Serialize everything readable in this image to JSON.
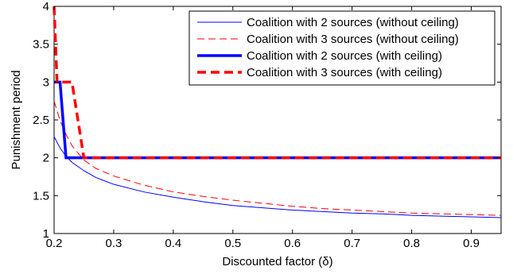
{
  "chart_data": {
    "type": "line",
    "xlabel": "Discounted factor (δ)",
    "ylabel": "Punishment period",
    "xlim": [
      0.2,
      0.95
    ],
    "ylim": [
      1,
      4
    ],
    "xticks": [
      0.2,
      0.3,
      0.4,
      0.5,
      0.6,
      0.7,
      0.8,
      0.9
    ],
    "yticks": [
      1,
      1.5,
      2,
      2.5,
      3,
      3.5,
      4
    ],
    "xtick_labels": [
      "0.2",
      "0.3",
      "0.4",
      "0.5",
      "0.6",
      "0.7",
      "0.8",
      "0.9"
    ],
    "ytick_labels": [
      "1",
      "1.5",
      "2",
      "2.5",
      "3",
      "3.5",
      "4"
    ],
    "grid": false,
    "legend_position": "top-right",
    "series": [
      {
        "name": "Coalition with 2 sources (without ceiling)",
        "color": "#0000ff",
        "line_style": "solid",
        "line_weight": "thin",
        "x": [
          0.2,
          0.21,
          0.22,
          0.23,
          0.25,
          0.27,
          0.3,
          0.35,
          0.4,
          0.45,
          0.5,
          0.55,
          0.6,
          0.65,
          0.7,
          0.75,
          0.8,
          0.85,
          0.9,
          0.95
        ],
        "y": [
          2.28,
          2.13,
          2.02,
          1.94,
          1.83,
          1.74,
          1.65,
          1.55,
          1.48,
          1.42,
          1.37,
          1.34,
          1.31,
          1.29,
          1.27,
          1.26,
          1.24,
          1.23,
          1.22,
          1.21
        ]
      },
      {
        "name": "Coalition with 3 sources (without ceiling)",
        "color": "#ff0000",
        "line_style": "dashed",
        "line_weight": "thin",
        "x": [
          0.2,
          0.21,
          0.22,
          0.23,
          0.25,
          0.27,
          0.3,
          0.35,
          0.4,
          0.45,
          0.5,
          0.55,
          0.6,
          0.65,
          0.7,
          0.75,
          0.8,
          0.85,
          0.9,
          0.95
        ],
        "y": [
          2.75,
          2.49,
          2.31,
          2.16,
          1.97,
          1.86,
          1.76,
          1.64,
          1.55,
          1.49,
          1.44,
          1.4,
          1.36,
          1.33,
          1.31,
          1.29,
          1.27,
          1.26,
          1.25,
          1.24
        ]
      },
      {
        "name": "Coalition with 2 sources (with ceiling)",
        "color": "#0000ff",
        "line_style": "solid",
        "line_weight": "thick",
        "x": [
          0.2,
          0.21,
          0.22,
          0.95
        ],
        "y": [
          3,
          3,
          2,
          2
        ]
      },
      {
        "name": "Coalition with 3 sources (with ceiling)",
        "color": "#ff0000",
        "line_style": "dashed",
        "line_weight": "thick",
        "x": [
          0.2,
          0.205,
          0.21,
          0.23,
          0.25,
          0.95
        ],
        "y": [
          4,
          3,
          3,
          3,
          2,
          2
        ]
      }
    ]
  }
}
